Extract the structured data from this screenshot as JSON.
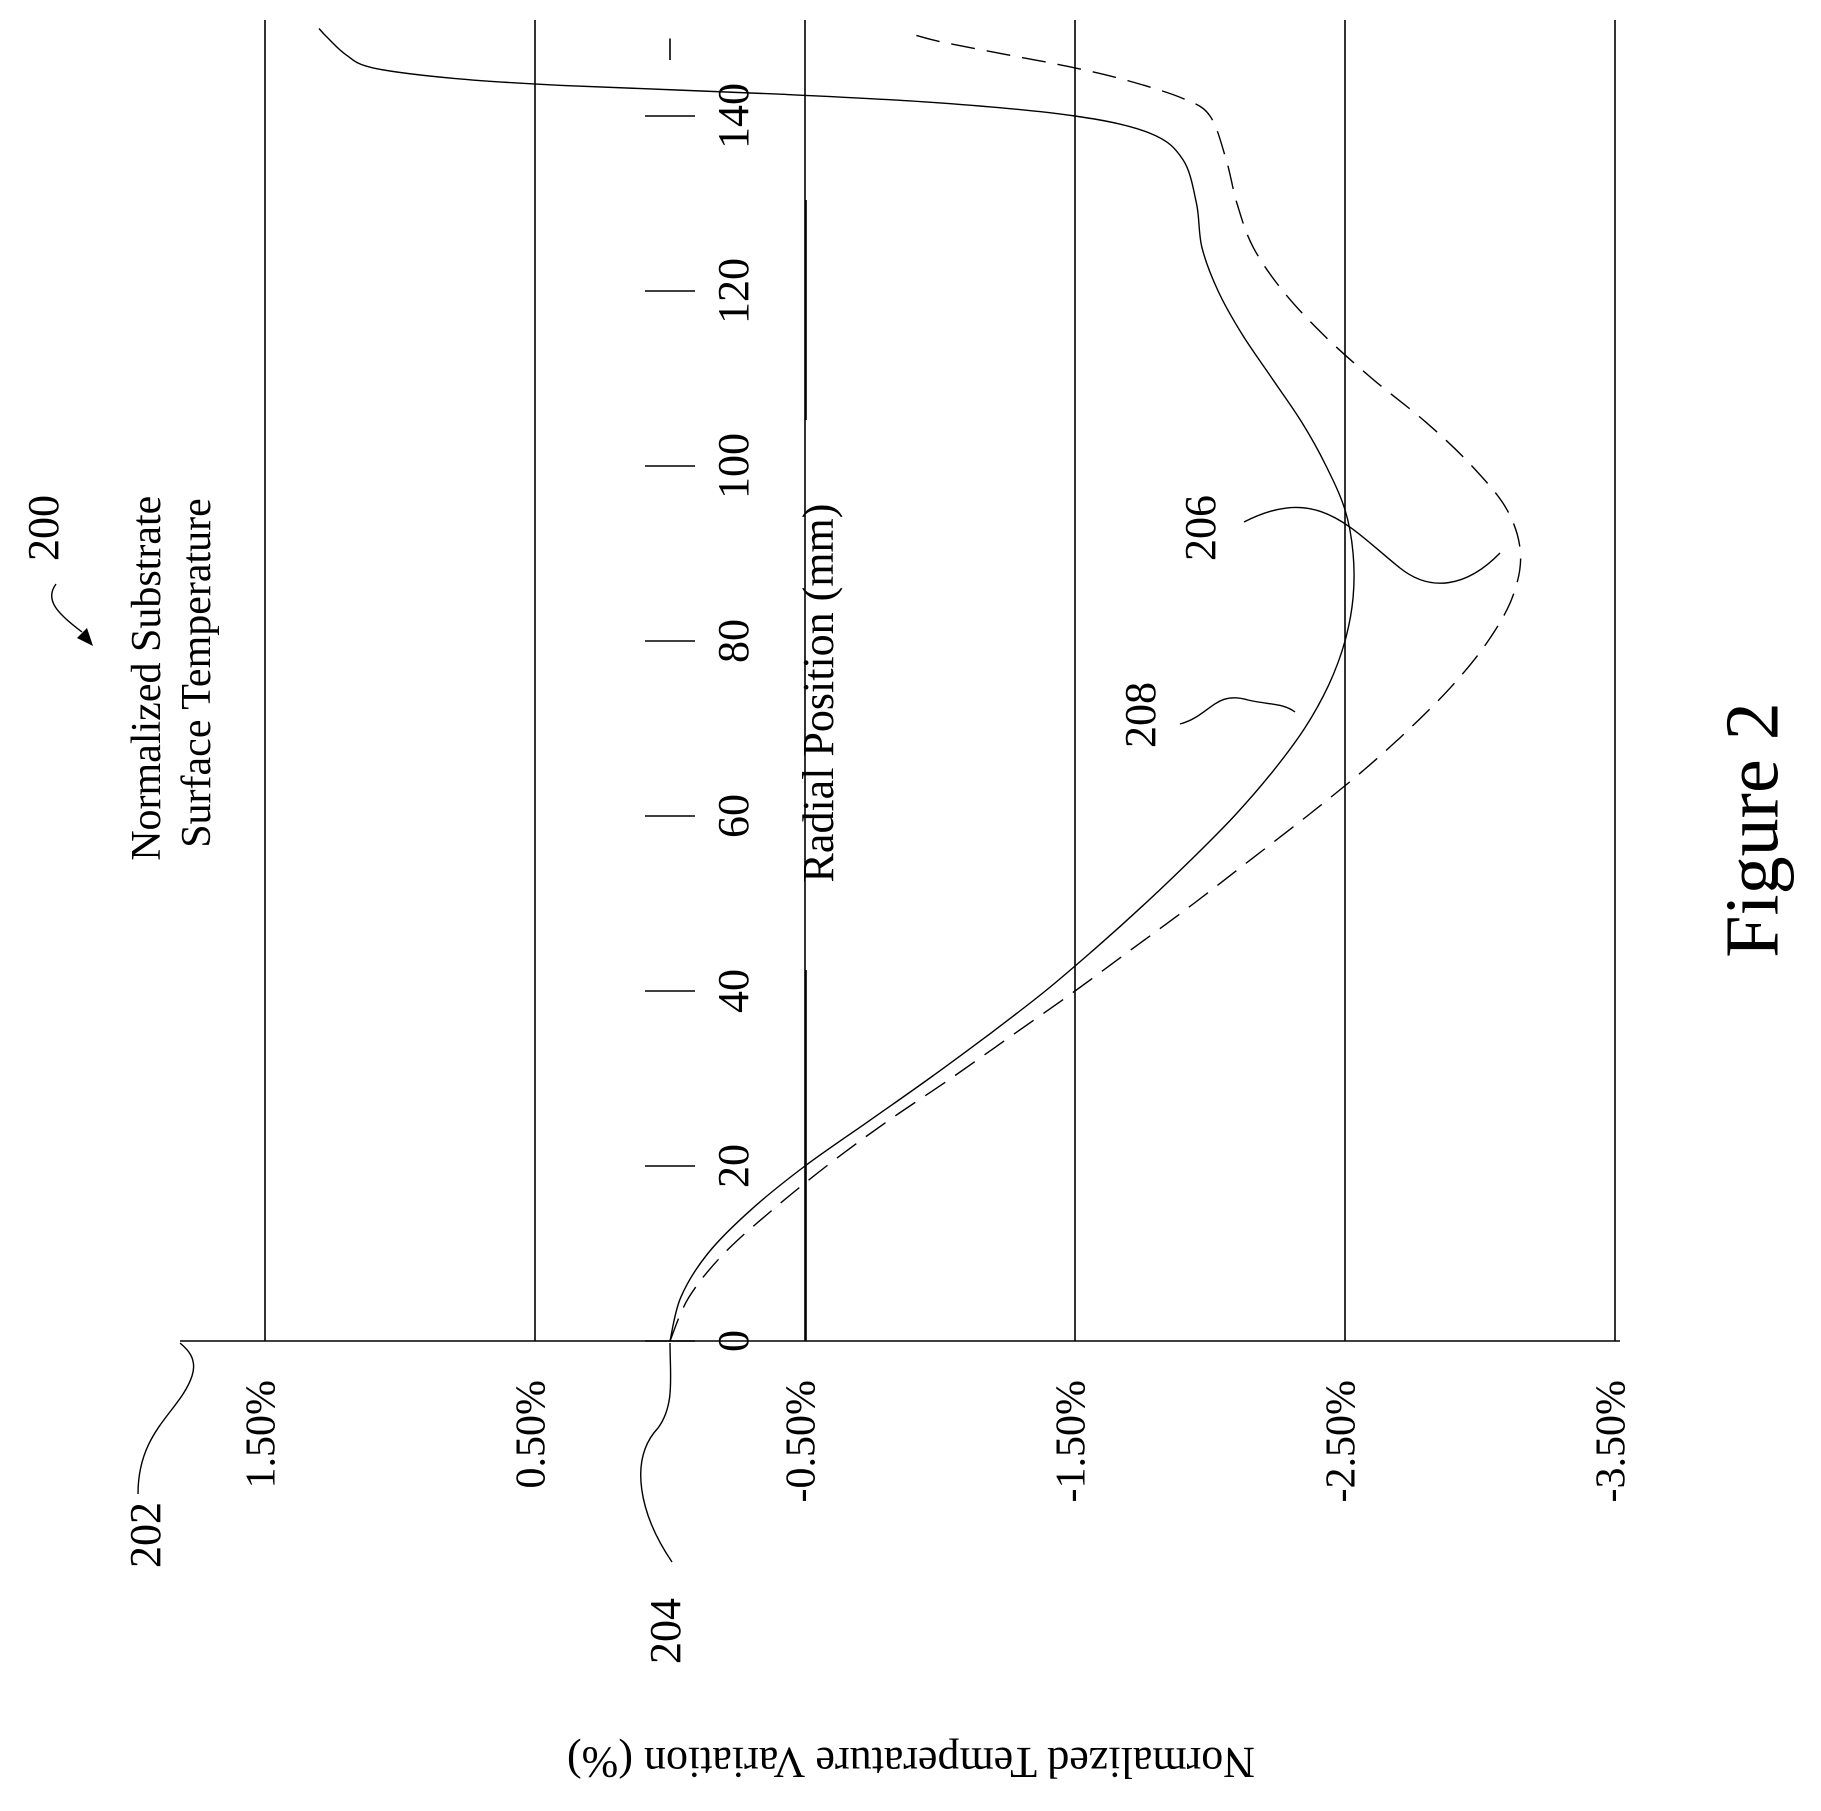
{
  "chart_data": {
    "type": "line",
    "title": "Normalized Substrate\nSurface Temperature",
    "xlabel": "Radial Position (mm)",
    "ylabel": "Normalized Temperature Variation (%)",
    "xlim": [
      0,
      150
    ],
    "ylim": [
      -3.5,
      1.5
    ],
    "x_ticks": [
      0,
      20,
      40,
      60,
      80,
      100,
      120,
      140
    ],
    "x_tick_labels": [
      "0",
      "20",
      "40",
      "60",
      "80",
      "100",
      "120",
      "140"
    ],
    "y_ticks": [
      1.5,
      0.5,
      -0.5,
      -1.5,
      -2.5,
      -3.5
    ],
    "y_tick_labels": [
      "1.50%",
      "0.50%",
      "-0.50%",
      "-1.50%",
      "-2.50%",
      "-3.50%"
    ],
    "grid": true,
    "series": [
      {
        "name": "206",
        "style": "dashed",
        "points": [
          [
            0,
            0
          ],
          [
            5,
            -0.07
          ],
          [
            10,
            -0.2
          ],
          [
            15,
            -0.38
          ],
          [
            20,
            -0.58
          ],
          [
            25,
            -0.8
          ],
          [
            30,
            -1.04
          ],
          [
            35,
            -1.27
          ],
          [
            40,
            -1.5
          ],
          [
            45,
            -1.72
          ],
          [
            50,
            -1.94
          ],
          [
            55,
            -2.15
          ],
          [
            60,
            -2.36
          ],
          [
            65,
            -2.56
          ],
          [
            70,
            -2.74
          ],
          [
            75,
            -2.9
          ],
          [
            80,
            -3.03
          ],
          [
            85,
            -3.12
          ],
          [
            90,
            -3.15
          ],
          [
            95,
            -3.1
          ],
          [
            100,
            -2.97
          ],
          [
            105,
            -2.8
          ],
          [
            110,
            -2.6
          ],
          [
            115,
            -2.42
          ],
          [
            120,
            -2.27
          ],
          [
            125,
            -2.16
          ],
          [
            130,
            -2.1
          ],
          [
            135,
            -2.06
          ],
          [
            140,
            -2.0
          ],
          [
            142,
            -1.9
          ],
          [
            144,
            -1.7
          ],
          [
            145.5,
            -1.5
          ],
          [
            147,
            -1.25
          ],
          [
            148.5,
            -1.0
          ],
          [
            149.5,
            -0.88
          ]
        ]
      },
      {
        "name": "208",
        "style": "solid",
        "points": [
          [
            0,
            0
          ],
          [
            5,
            -0.04
          ],
          [
            10,
            -0.14
          ],
          [
            15,
            -0.3
          ],
          [
            20,
            -0.5
          ],
          [
            25,
            -0.73
          ],
          [
            30,
            -0.96
          ],
          [
            35,
            -1.18
          ],
          [
            40,
            -1.39
          ],
          [
            45,
            -1.58
          ],
          [
            50,
            -1.76
          ],
          [
            55,
            -1.93
          ],
          [
            60,
            -2.09
          ],
          [
            65,
            -2.23
          ],
          [
            70,
            -2.35
          ],
          [
            75,
            -2.44
          ],
          [
            80,
            -2.5
          ],
          [
            85,
            -2.53
          ],
          [
            90,
            -2.53
          ],
          [
            95,
            -2.5
          ],
          [
            100,
            -2.43
          ],
          [
            105,
            -2.34
          ],
          [
            110,
            -2.23
          ],
          [
            115,
            -2.12
          ],
          [
            120,
            -2.03
          ],
          [
            125,
            -1.97
          ],
          [
            130,
            -1.95
          ],
          [
            135,
            -1.9
          ],
          [
            138,
            -1.78
          ],
          [
            140,
            -1.5
          ],
          [
            141.5,
            -1.0
          ],
          [
            142.5,
            -0.4
          ],
          [
            143.5,
            0.4
          ],
          [
            144.3,
            0.8
          ],
          [
            145.5,
            1.1
          ],
          [
            147,
            1.2
          ],
          [
            149,
            1.27
          ],
          [
            150,
            1.3
          ]
        ]
      }
    ]
  },
  "annotations": {
    "fig_ref": "200",
    "y_axis_ref": "202",
    "origin_ref": "204",
    "curve_206_ref": "206",
    "curve_208_ref": "208"
  },
  "caption": "Figure 2"
}
